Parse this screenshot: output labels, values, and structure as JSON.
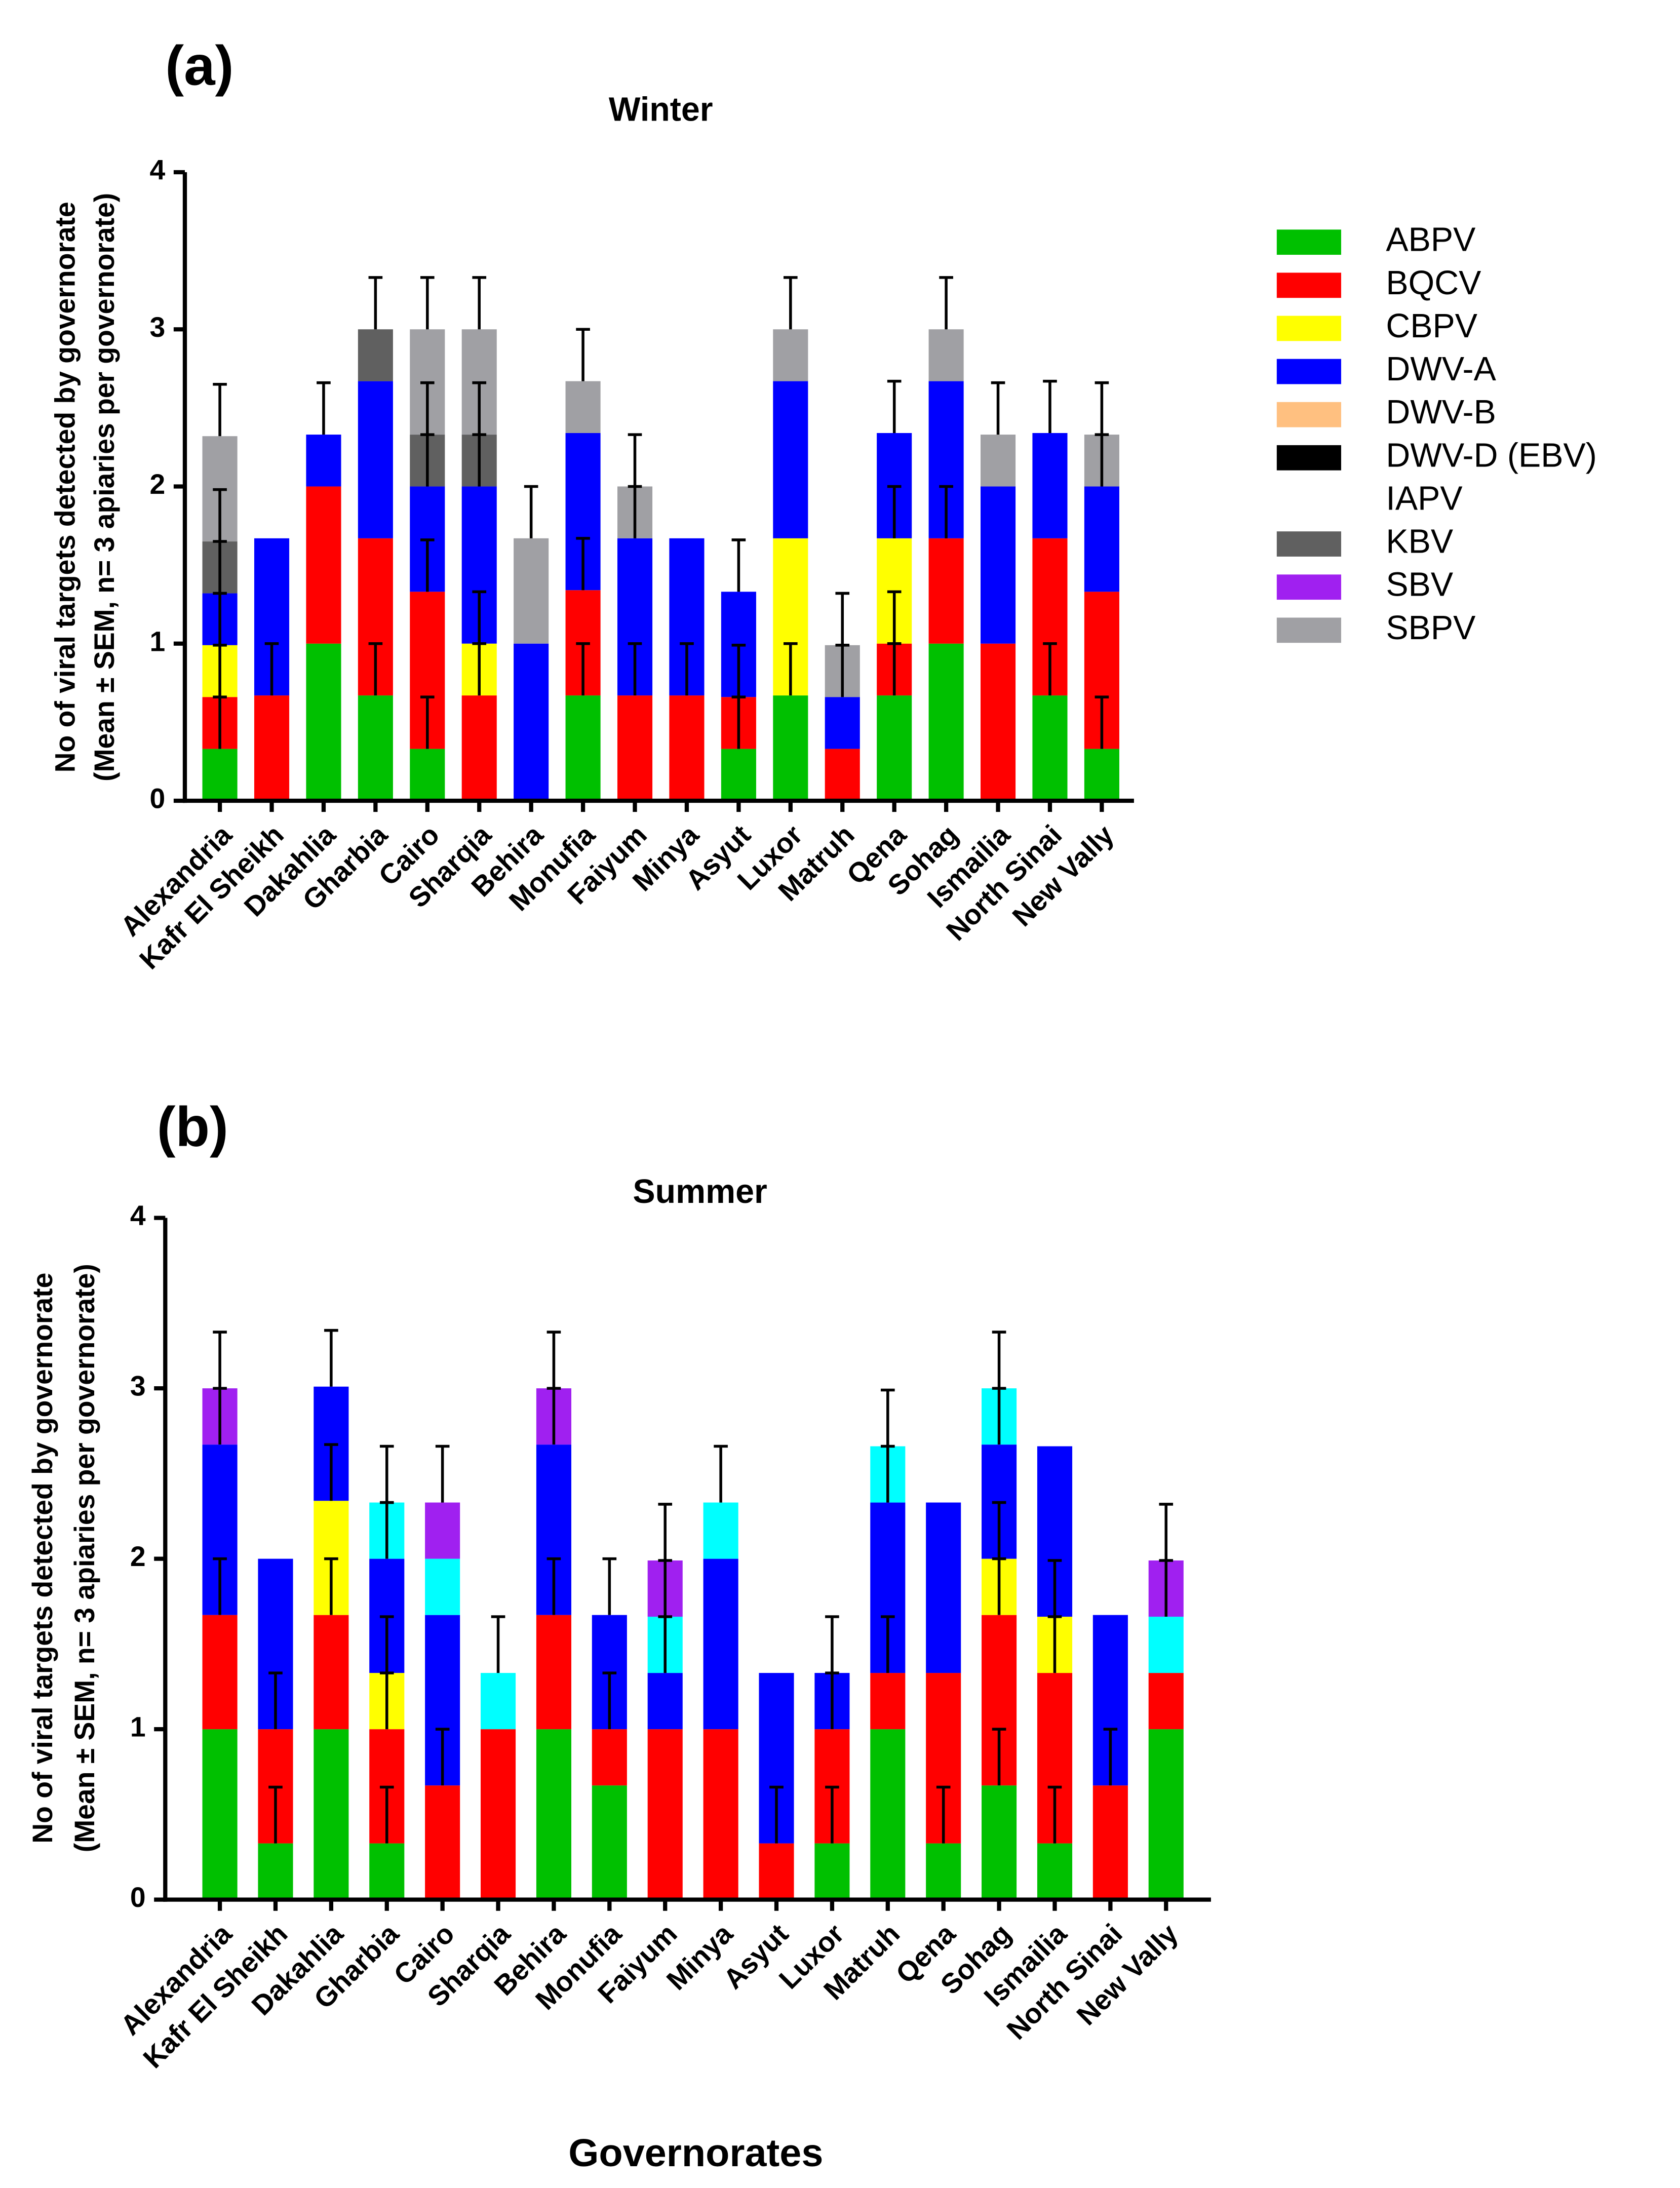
{
  "chart_data": [
    {
      "type": "bar",
      "stacked": true,
      "panel": "(a)",
      "title": "Winter",
      "ylabel": [
        "No of viral targets detected by governorate",
        "(Mean ± SEM, n= 3 apiaries per governorate)"
      ],
      "categories": [
        "Alexandria",
        "Kafr El Sheikh",
        "Dakahlia",
        "Gharbia",
        "Cairo",
        "Sharqia",
        "Behira",
        "Monufia",
        "Faiyum",
        "Minya",
        "Asyut",
        "Luxor",
        "Matruh",
        "Qena",
        "Sohag",
        "Ismailia",
        "North Sinai",
        "New Vally"
      ],
      "ylim": [
        0,
        4
      ],
      "yticks": [
        0,
        1,
        2,
        3,
        4
      ],
      "series": [
        {
          "name": "ABPV",
          "color": "#00c000",
          "values": [
            0.33,
            0,
            1,
            0.67,
            0.33,
            0,
            0,
            0.67,
            0,
            0,
            0.33,
            0.67,
            0,
            0.67,
            1,
            0,
            0.67,
            0.33
          ],
          "errors": [
            0.33,
            null,
            null,
            0.33,
            0.33,
            null,
            null,
            0.33,
            null,
            null,
            0.33,
            0.33,
            null,
            0.33,
            null,
            null,
            0.33,
            0.33
          ]
        },
        {
          "name": "BQCV",
          "color": "#ff0000",
          "values": [
            0.33,
            0.67,
            1,
            1,
            1,
            0.67,
            0,
            0.67,
            0.67,
            0.67,
            0.33,
            0,
            0.33,
            0.33,
            0.67,
            1,
            1,
            1
          ],
          "errors": [
            0.33,
            0.33,
            null,
            null,
            0.33,
            0.33,
            null,
            0.33,
            0.33,
            0.33,
            0.33,
            null,
            null,
            0.33,
            0.33,
            null,
            null,
            null
          ]
        },
        {
          "name": "CBPV",
          "color": "#ffff00",
          "values": [
            0.33,
            0,
            0,
            0,
            0,
            0.33,
            0,
            0,
            0,
            0,
            0,
            1,
            0,
            0.67,
            0,
            0,
            0,
            0
          ],
          "errors": [
            0.33,
            null,
            null,
            null,
            null,
            0.33,
            null,
            null,
            null,
            null,
            null,
            null,
            null,
            0.33,
            null,
            null,
            null,
            null
          ]
        },
        {
          "name": "DWV-A",
          "color": "#0000ff",
          "values": [
            0.33,
            1,
            0.33,
            1,
            0.67,
            1,
            1,
            1,
            1,
            1,
            0.67,
            1,
            0.33,
            0.67,
            1,
            1,
            0.67,
            0.67
          ],
          "errors": [
            0.33,
            null,
            0.33,
            null,
            0.33,
            0.33,
            null,
            null,
            0.33,
            null,
            0.33,
            null,
            0.33,
            0.33,
            null,
            null,
            0.33,
            0.33
          ]
        },
        {
          "name": "DWV-B",
          "color": "#ffc080",
          "values": [
            0,
            0,
            0,
            0,
            0,
            0,
            0,
            0,
            0,
            0,
            0,
            0,
            0,
            0,
            0,
            0,
            0,
            0
          ]
        },
        {
          "name": "DWV-D (EBV)",
          "color": "#000000",
          "values": [
            0,
            0,
            0,
            0,
            0,
            0,
            0,
            0,
            0,
            0,
            0,
            0,
            0,
            0,
            0,
            0,
            0,
            0
          ]
        },
        {
          "name": "IAPV",
          "color": "#ffffff",
          "values": [
            0,
            0,
            0,
            0,
            0,
            0,
            0,
            0,
            0,
            0,
            0,
            0,
            0,
            0,
            0,
            0,
            0,
            0
          ]
        },
        {
          "name": "KBV",
          "color": "#606060",
          "values": [
            0.33,
            0,
            0,
            0.33,
            0.33,
            0.33,
            0,
            0,
            0,
            0,
            0,
            0,
            0,
            0,
            0,
            0,
            0,
            0
          ],
          "errors": [
            0.33,
            null,
            null,
            0.33,
            0.33,
            0.33,
            null,
            null,
            null,
            null,
            null,
            null,
            null,
            null,
            null,
            null,
            null,
            null
          ]
        },
        {
          "name": "SBV",
          "color": "#a020f0",
          "values": [
            0,
            0,
            0,
            0,
            0,
            0,
            0,
            0,
            0,
            0,
            0,
            0,
            0,
            0,
            0,
            0,
            0,
            0
          ]
        },
        {
          "name": "SBPV",
          "color": "#a0a0a4",
          "values": [
            0.67,
            0,
            0,
            0,
            0.67,
            0.67,
            0.67,
            0.33,
            0.33,
            0,
            0,
            0.33,
            0.33,
            0,
            0.33,
            0.33,
            0,
            0.33
          ],
          "errors": [
            0.33,
            null,
            null,
            null,
            0.33,
            0.33,
            0.33,
            0.33,
            0.33,
            null,
            null,
            0.33,
            0.33,
            null,
            0.33,
            0.33,
            null,
            0.33
          ]
        }
      ]
    },
    {
      "type": "bar",
      "stacked": true,
      "panel": "(b)",
      "title": "Summer",
      "ylabel": [
        "No of viral targets detected by governorate",
        "(Mean ± SEM, n= 3 apiaries per governorate)"
      ],
      "xlabel": "Governorates",
      "categories": [
        "Alexandria",
        "Kafr El Sheikh",
        "Dakahlia",
        "Gharbia",
        "Cairo",
        "Sharqia",
        "Behira",
        "Monufia",
        "Faiyum",
        "Minya",
        "Asyut",
        "Luxor",
        "Matruh",
        "Qena",
        "Sohag",
        "Ismailia",
        "North Sinai",
        "New Vally"
      ],
      "ylim": [
        0,
        4
      ],
      "yticks": [
        0,
        1,
        2,
        3,
        4
      ],
      "series": [
        {
          "name": "ABPV",
          "color": "#00c000",
          "values": [
            1,
            0.33,
            1,
            0.33,
            0,
            0,
            1,
            0.67,
            0,
            0,
            0,
            0.33,
            1,
            0.33,
            0.67,
            0.33,
            0,
            1
          ],
          "errors": [
            null,
            0.33,
            null,
            0.33,
            null,
            null,
            null,
            null,
            null,
            null,
            null,
            0.33,
            null,
            0.33,
            0.33,
            0.33,
            null,
            null
          ]
        },
        {
          "name": "BQCV",
          "color": "#ff0000",
          "values": [
            0.67,
            0.67,
            0.67,
            0.67,
            0.67,
            1,
            0.67,
            0.33,
            1,
            1,
            0.33,
            0.67,
            0.33,
            1,
            1,
            1,
            0.67,
            0.33
          ],
          "errors": [
            0.33,
            0.33,
            0.33,
            0.33,
            0.33,
            null,
            0.33,
            0.33,
            null,
            null,
            0.33,
            0.33,
            0.33,
            null,
            0.33,
            0.33,
            0.33,
            null
          ]
        },
        {
          "name": "CBPV",
          "color": "#ffff00",
          "values": [
            0,
            0,
            0.67,
            0.33,
            0,
            0,
            0,
            0,
            0,
            0,
            0,
            0,
            0,
            0,
            0.33,
            0.33,
            0,
            0
          ],
          "errors": [
            null,
            null,
            0.33,
            0.33,
            null,
            null,
            null,
            null,
            null,
            null,
            null,
            null,
            null,
            null,
            0.33,
            0.33,
            null,
            null
          ]
        },
        {
          "name": "DWV-A",
          "color": "#0000ff",
          "values": [
            1,
            1,
            0.67,
            0.67,
            1,
            0,
            1,
            0.67,
            0.33,
            1,
            1,
            0.33,
            1,
            1,
            0.67,
            1,
            1,
            0
          ],
          "errors": [
            0.33,
            null,
            0.33,
            0.33,
            null,
            null,
            0.33,
            0.33,
            0.33,
            null,
            null,
            0.33,
            0.33,
            null,
            0.33,
            null,
            null,
            null
          ]
        },
        {
          "name": "IAPV",
          "color": "#00ffff",
          "values": [
            0,
            0,
            0,
            0.33,
            0.33,
            0.33,
            0,
            0,
            0.33,
            0.33,
            0,
            0,
            0.33,
            0,
            0.33,
            0,
            0,
            0.33
          ],
          "errors": [
            null,
            null,
            null,
            0.33,
            null,
            0.33,
            null,
            null,
            0.33,
            0.33,
            null,
            null,
            0.33,
            null,
            0.33,
            null,
            null,
            0.33
          ]
        },
        {
          "name": "SBV",
          "color": "#a020f0",
          "values": [
            0.33,
            0,
            0,
            0,
            0.33,
            0,
            0.33,
            0,
            0.33,
            0,
            0,
            0,
            0,
            0,
            0,
            0,
            0,
            0.33
          ],
          "errors": [
            0.33,
            null,
            null,
            null,
            0.33,
            null,
            0.33,
            null,
            0.33,
            null,
            null,
            null,
            null,
            null,
            null,
            null,
            null,
            0.33
          ]
        }
      ]
    }
  ]
}
